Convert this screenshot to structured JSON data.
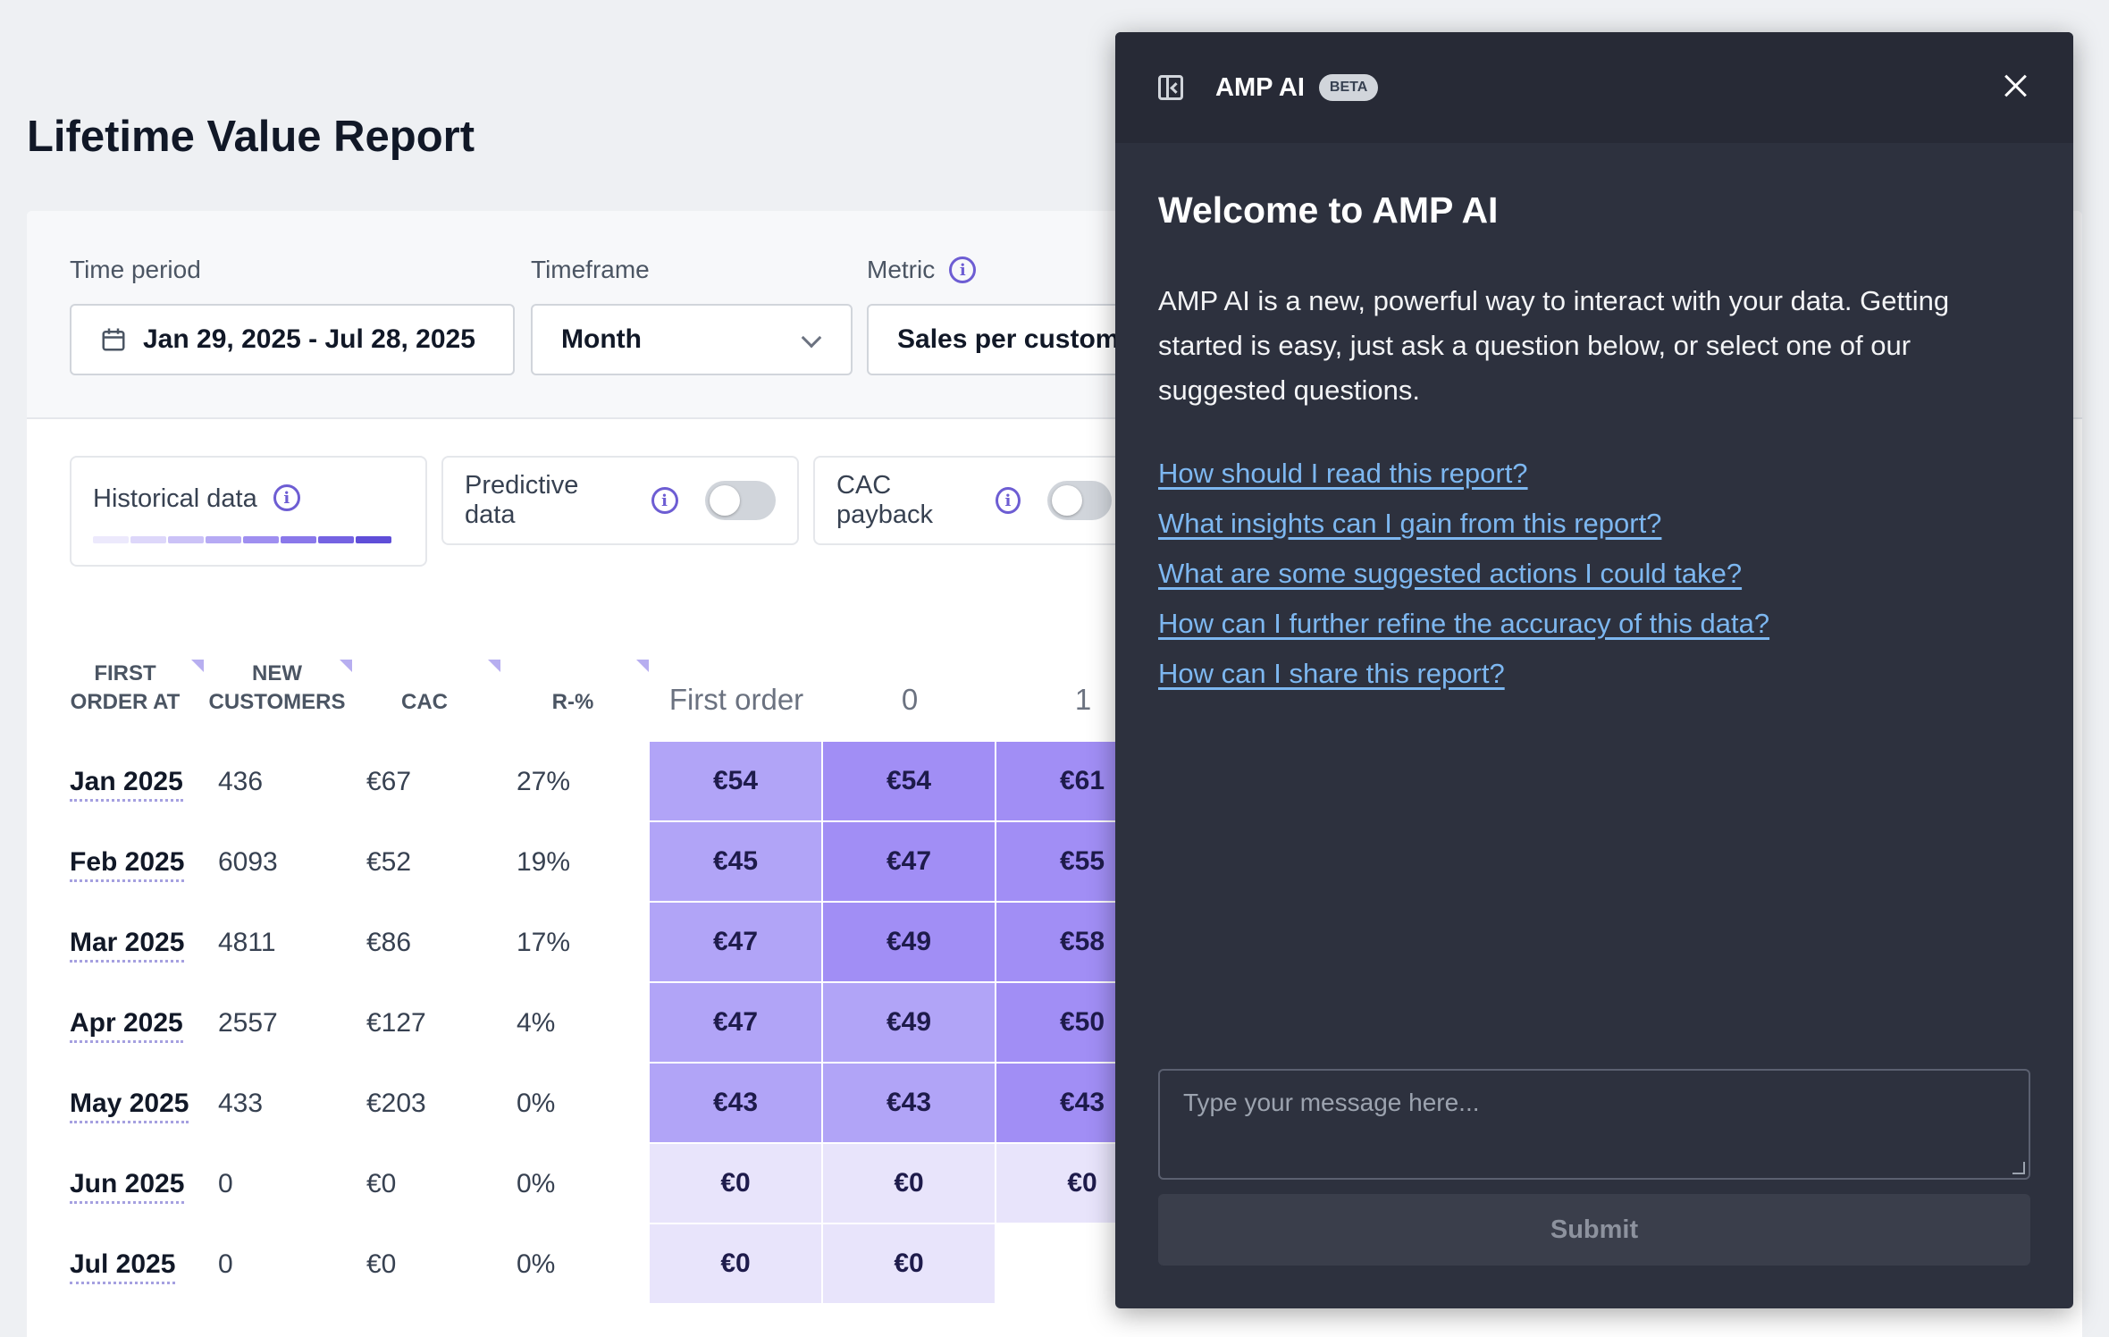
{
  "page": {
    "title": "Lifetime Value Report"
  },
  "filters": {
    "time_period": {
      "label": "Time period",
      "value": "Jan 29, 2025 - Jul 28, 2025"
    },
    "timeframe": {
      "label": "Timeframe",
      "value": "Month"
    },
    "metric": {
      "label": "Metric",
      "value": "Sales per customer"
    }
  },
  "toggles": {
    "historical": {
      "label": "Historical data"
    },
    "predictive": {
      "label": "Predictive data",
      "on": false
    },
    "cac_payback": {
      "label": "CAC payback",
      "on": false
    }
  },
  "table": {
    "headers": {
      "first_order_at": "FIRST ORDER AT",
      "new_customers": "NEW CUSTOMERS",
      "cac": "CAC",
      "r_pct": "R-%"
    },
    "period_columns": [
      "First order",
      "0",
      "1"
    ],
    "rows": [
      {
        "label": "Jan 2025",
        "new_customers": "436",
        "cac": "€67",
        "r": "27%",
        "cells": [
          "€54",
          "€54",
          "€61"
        ]
      },
      {
        "label": "Feb 2025",
        "new_customers": "6093",
        "cac": "€52",
        "r": "19%",
        "cells": [
          "€45",
          "€47",
          "€55"
        ]
      },
      {
        "label": "Mar 2025",
        "new_customers": "4811",
        "cac": "€86",
        "r": "17%",
        "cells": [
          "€47",
          "€49",
          "€58"
        ]
      },
      {
        "label": "Apr 2025",
        "new_customers": "2557",
        "cac": "€127",
        "r": "4%",
        "cells": [
          "€47",
          "€49",
          "€50"
        ]
      },
      {
        "label": "May 2025",
        "new_customers": "433",
        "cac": "€203",
        "r": "0%",
        "cells": [
          "€43",
          "€43",
          "€43"
        ]
      },
      {
        "label": "Jun 2025",
        "new_customers": "0",
        "cac": "€0",
        "r": "0%",
        "cells": [
          "€0",
          "€0",
          "€0"
        ]
      },
      {
        "label": "Jul 2025",
        "new_customers": "0",
        "cac": "€0",
        "r": "0%",
        "cells": [
          "€0",
          "€0"
        ]
      }
    ]
  },
  "ampai": {
    "title": "AMP AI",
    "badge": "BETA",
    "welcome": "Welcome to AMP AI",
    "intro": "AMP AI is a new, powerful way to interact with your data. Getting started is easy, just ask a question below, or select one of our suggested questions.",
    "questions": [
      "How should I read this report?",
      "What insights can I gain from this report?",
      "What are some suggested actions I could take?",
      "How can I further refine the accuracy of this data?",
      "How can I share this report?"
    ],
    "input_placeholder": "Type your message here...",
    "submit_label": "Submit"
  },
  "colors": {
    "heat_strong": "#a18ef5",
    "heat_medium": "#b1a4f7",
    "heat_light": "#e8e4fb",
    "accent": "#6d5dd3",
    "panel_bg": "#2d313e",
    "link": "#7db7f0"
  }
}
